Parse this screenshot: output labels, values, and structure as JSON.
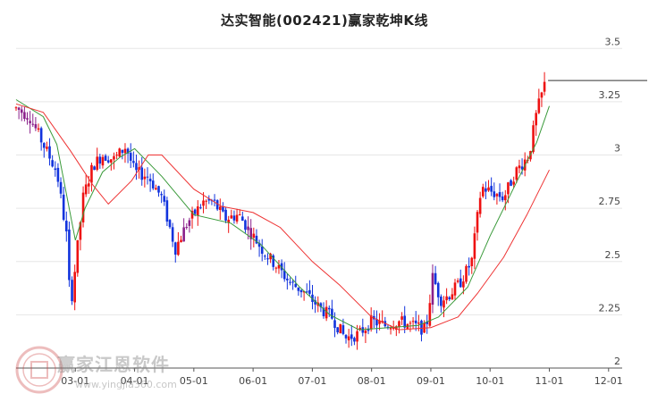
{
  "chart_data": {
    "type": "candlestick",
    "title": "达实智能(002421)赢家乾坤K线",
    "x_ticks": [
      "03-01",
      "04-01",
      "05-01",
      "06-01",
      "07-01",
      "08-01",
      "09-01",
      "10-01",
      "11-01",
      "12-01"
    ],
    "y_ticks": [
      "3.5",
      "3.25",
      "3",
      "2.75",
      "2.5",
      "2.25",
      "2"
    ],
    "ylim": [
      2.0,
      3.56
    ],
    "grid": "horizontal",
    "last_price": 3.35,
    "colors": {
      "up": "#ee1111",
      "down": "#1133dd",
      "highlight": "#8a1f8a",
      "ma_short": "#3a9a3a",
      "ma_long": "#ee3333",
      "grid": "#e6e6e6"
    },
    "price_path": [
      [
        "02-01",
        3.22
      ],
      [
        "02-08",
        3.18
      ],
      [
        "02-15",
        3.05
      ],
      [
        "02-22",
        2.92
      ],
      [
        "02-27",
        2.62
      ],
      [
        "02-29",
        2.28
      ],
      [
        "03-05",
        2.8
      ],
      [
        "03-10",
        2.95
      ],
      [
        "03-15",
        3.0
      ],
      [
        "03-21",
        2.98
      ],
      [
        "03-27",
        3.04
      ],
      [
        "04-01",
        2.92
      ],
      [
        "04-08",
        2.9
      ],
      [
        "04-15",
        2.8
      ],
      [
        "04-22",
        2.56
      ],
      [
        "04-28",
        2.68
      ],
      [
        "05-06",
        2.78
      ],
      [
        "05-11",
        2.78
      ],
      [
        "05-17",
        2.7
      ],
      [
        "05-24",
        2.72
      ],
      [
        "06-01",
        2.62
      ],
      [
        "06-07",
        2.54
      ],
      [
        "06-13",
        2.48
      ],
      [
        "06-20",
        2.4
      ],
      [
        "06-27",
        2.36
      ],
      [
        "07-05",
        2.28
      ],
      [
        "07-11",
        2.24
      ],
      [
        "07-18",
        2.14
      ],
      [
        "07-25",
        2.16
      ],
      [
        "08-01",
        2.22
      ],
      [
        "08-08",
        2.2
      ],
      [
        "08-15",
        2.22
      ],
      [
        "08-22",
        2.2
      ],
      [
        "08-29",
        2.18
      ],
      [
        "09-02",
        2.43
      ],
      [
        "09-06",
        2.32
      ],
      [
        "09-10",
        2.34
      ],
      [
        "09-16",
        2.4
      ],
      [
        "09-22",
        2.5
      ],
      [
        "09-27",
        2.85
      ],
      [
        "10-08",
        2.8
      ],
      [
        "10-14",
        2.92
      ],
      [
        "10-21",
        3.0
      ],
      [
        "10-25",
        3.2
      ],
      [
        "10-29",
        3.33
      ]
    ],
    "candles_count": 190,
    "series": [
      {
        "points": [
          [
            "02-01",
            3.26
          ],
          [
            "02-15",
            3.18
          ],
          [
            "02-22",
            3.05
          ],
          [
            "03-01",
            2.6
          ],
          [
            "03-06",
            2.75
          ],
          [
            "03-15",
            2.92
          ],
          [
            "03-24",
            2.99
          ],
          [
            "04-01",
            3.03
          ],
          [
            "04-15",
            2.9
          ],
          [
            "05-01",
            2.72
          ],
          [
            "05-20",
            2.68
          ],
          [
            "06-05",
            2.58
          ],
          [
            "06-25",
            2.38
          ],
          [
            "07-10",
            2.25
          ],
          [
            "07-25",
            2.18
          ],
          [
            "08-10",
            2.19
          ],
          [
            "08-25",
            2.2
          ],
          [
            "09-05",
            2.24
          ],
          [
            "09-20",
            2.38
          ],
          [
            "10-01",
            2.62
          ],
          [
            "10-15",
            2.88
          ],
          [
            "10-25",
            3.06
          ],
          [
            "11-01",
            3.23
          ]
        ]
      },
      {
        "points": [
          [
            "02-01",
            3.24
          ],
          [
            "02-15",
            3.2
          ],
          [
            "02-29",
            3.02
          ],
          [
            "03-10",
            2.86
          ],
          [
            "03-18",
            2.77
          ],
          [
            "03-30",
            2.88
          ],
          [
            "04-08",
            3.0
          ],
          [
            "04-15",
            3.0
          ],
          [
            "05-01",
            2.84
          ],
          [
            "05-15",
            2.76
          ],
          [
            "06-01",
            2.73
          ],
          [
            "06-15",
            2.66
          ],
          [
            "07-01",
            2.5
          ],
          [
            "07-15",
            2.39
          ],
          [
            "08-01",
            2.24
          ],
          [
            "08-15",
            2.18
          ],
          [
            "09-01",
            2.19
          ],
          [
            "09-15",
            2.24
          ],
          [
            "09-25",
            2.35
          ],
          [
            "10-08",
            2.52
          ],
          [
            "10-20",
            2.72
          ],
          [
            "11-01",
            2.93
          ]
        ]
      }
    ]
  },
  "watermark": {
    "name": "赢家江恩软件",
    "url": "www.yingjia360.com"
  }
}
